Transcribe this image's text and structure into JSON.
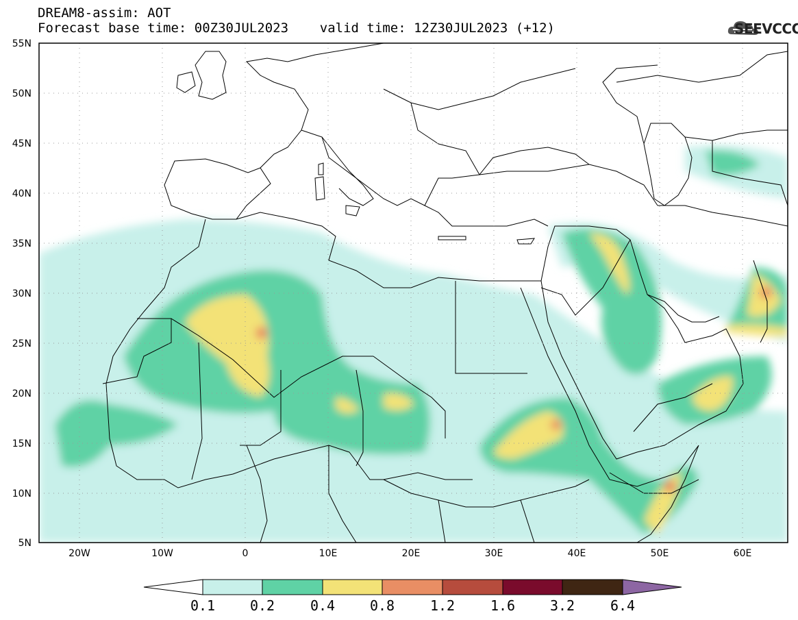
{
  "header": {
    "line1": "DREAM8-assim: AOT",
    "line2": "Forecast base time: 00Z30JUL2023    valid time: 12Z30JUL2023 (+12)"
  },
  "logo": {
    "text": "SEEVCCC",
    "icon": "cloud-logo-icon"
  },
  "map": {
    "lon_range": [
      -25,
      65
    ],
    "lat_range": [
      5,
      55
    ],
    "lat_labels": [
      "55N",
      "50N",
      "45N",
      "40N",
      "35N",
      "30N",
      "25N",
      "20N",
      "15N",
      "10N",
      "5N"
    ],
    "lon_labels": [
      "20W",
      "10W",
      "0",
      "10E",
      "20E",
      "30E",
      "40E",
      "50E",
      "60E"
    ]
  },
  "colorbar": {
    "ticks": [
      "0.1",
      "0.2",
      "0.4",
      "0.8",
      "1.2",
      "1.6",
      "3.2",
      "6.4"
    ],
    "colors": [
      "#ffffff",
      "#c8f0ea",
      "#5fd2a5",
      "#f3e277",
      "#e98e64",
      "#b64c3d",
      "#7a0b2c",
      "#3f2613",
      "#8d66a3"
    ]
  }
}
